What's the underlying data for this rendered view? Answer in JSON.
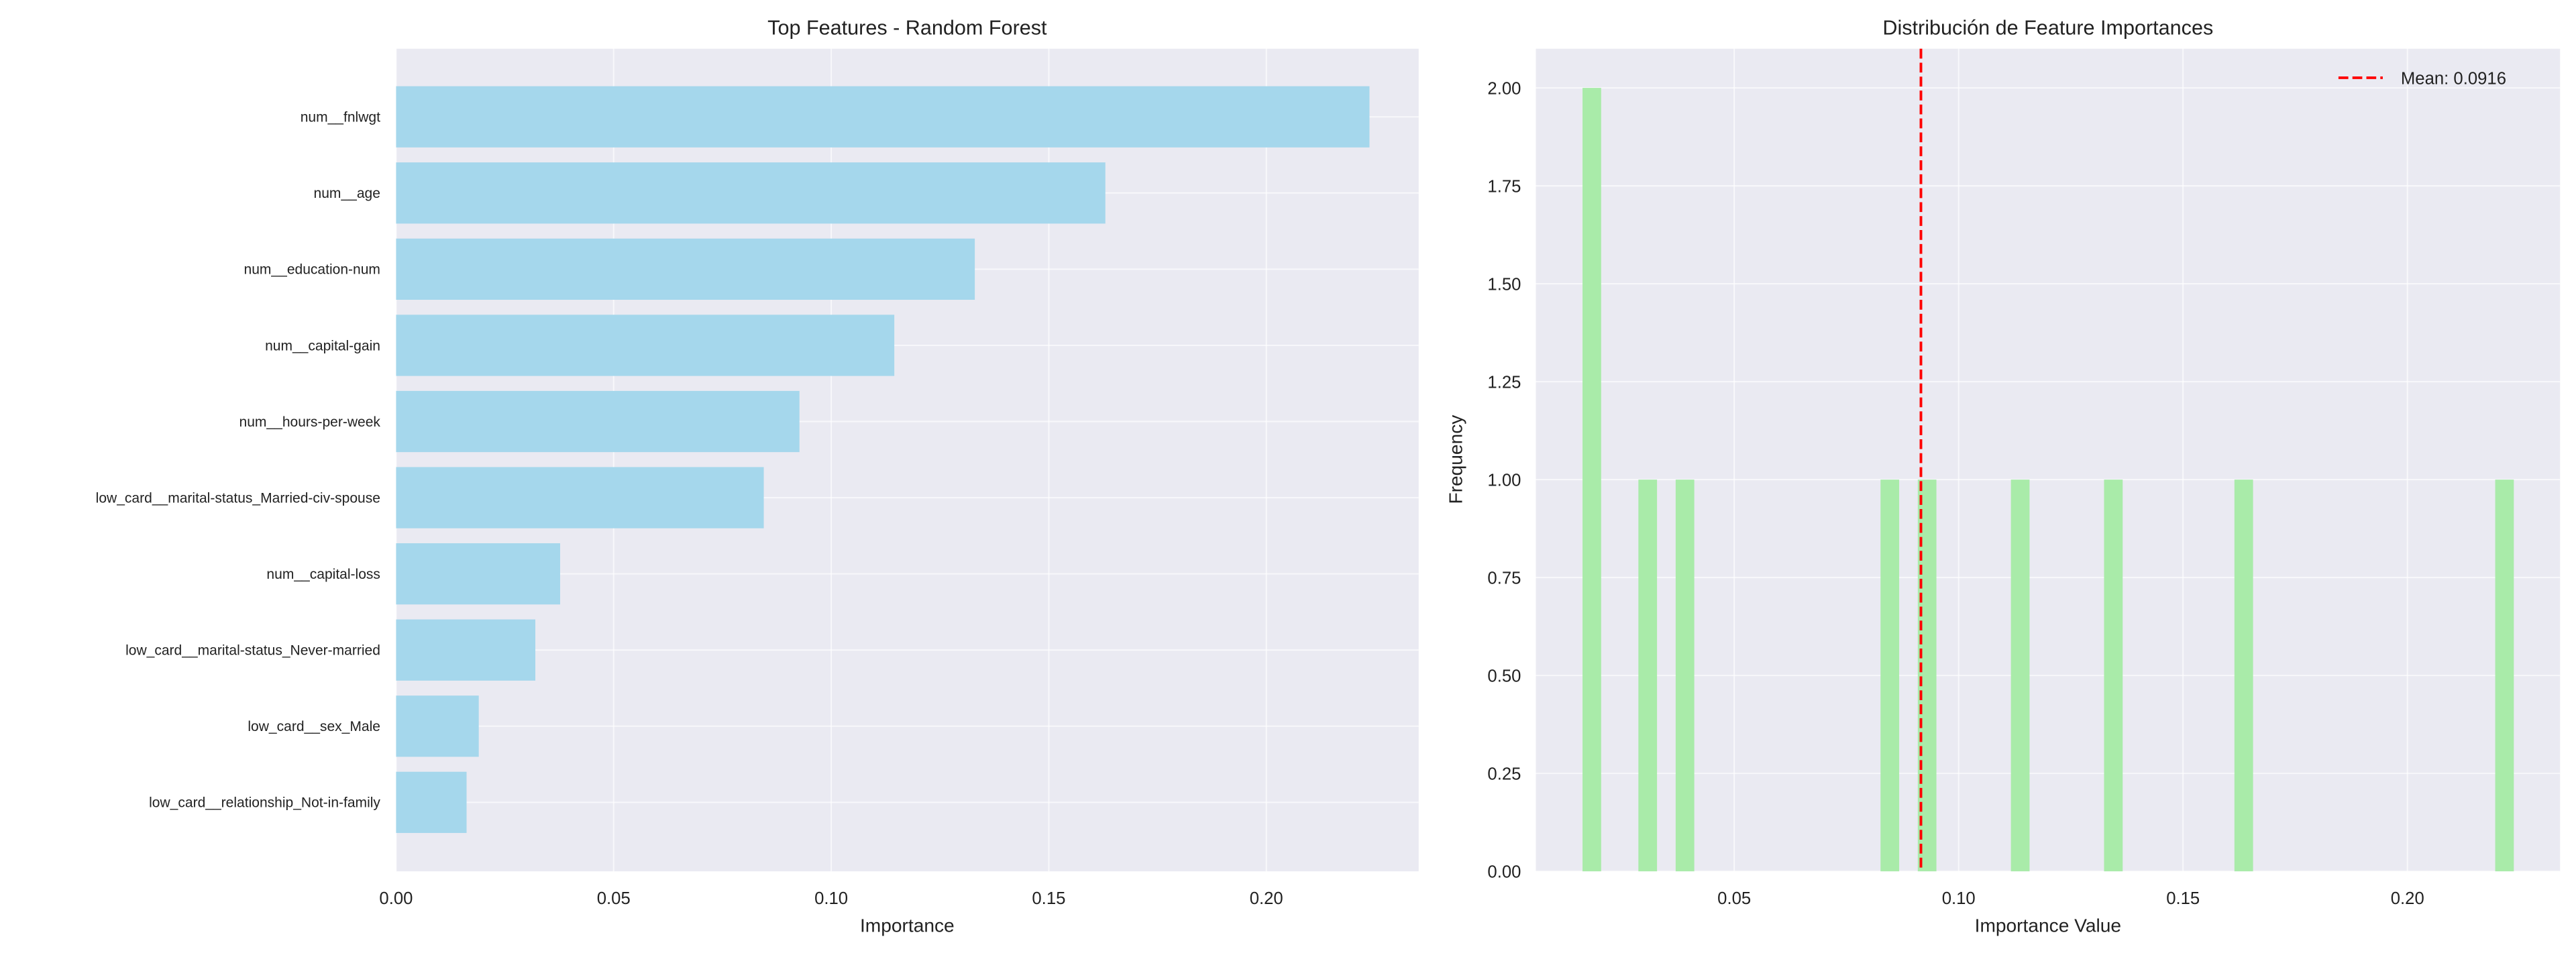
{
  "chart_data": [
    {
      "type": "bar",
      "orientation": "horizontal",
      "title": "Top Features - Random Forest",
      "xlabel": "Importance",
      "ylabel": "",
      "categories": [
        "num__fnlwgt",
        "num__age",
        "num__education-num",
        "num__capital-gain",
        "num__hours-per-week",
        "low_card__marital-status_Married-civ-spouse",
        "num__capital-loss",
        "low_card__marital-status_Never-married",
        "low_card__sex_Male",
        "low_card__relationship_Not-in-family"
      ],
      "values": [
        0.2237,
        0.163,
        0.133,
        0.1145,
        0.0927,
        0.0845,
        0.0377,
        0.032,
        0.019,
        0.0162
      ],
      "xlim": [
        0,
        0.235
      ],
      "xticks": [
        "0.00",
        "0.05",
        "0.10",
        "0.15",
        "0.20"
      ],
      "grid": true,
      "color": "#A5D7EC"
    },
    {
      "type": "histogram",
      "title": "Distribución de Feature Importances",
      "xlabel": "Importance Value",
      "ylabel": "Frequency",
      "bins": 50,
      "values": [
        0.2237,
        0.163,
        0.133,
        0.1145,
        0.0927,
        0.0845,
        0.0377,
        0.032,
        0.019,
        0.0162
      ],
      "xlim": [
        0.0058,
        0.234
      ],
      "ylim": [
        0,
        2.1
      ],
      "xticks": [
        "0.05",
        "0.10",
        "0.15",
        "0.20"
      ],
      "yticks": [
        "0.00",
        "0.25",
        "0.50",
        "0.75",
        "1.00",
        "1.25",
        "1.50",
        "1.75",
        "2.00"
      ],
      "mean_line": {
        "value": 0.0916,
        "label": "Mean: 0.0916",
        "color": "#FF0000"
      },
      "legend": "top-right",
      "grid": true,
      "color": "#A9EBA9"
    }
  ]
}
